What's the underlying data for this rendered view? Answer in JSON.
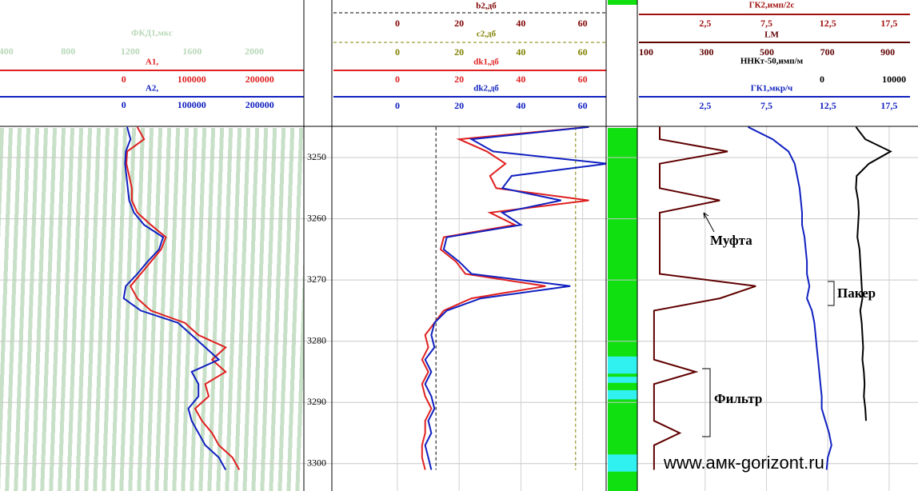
{
  "well": {
    "depth_range": [
      3244.9,
      3302.9
    ],
    "depth_ticks": [
      3250,
      3260,
      3270,
      3280,
      3290,
      3300
    ],
    "depths": [
      3245,
      3247,
      3249,
      3251,
      3253,
      3255,
      3257,
      3259,
      3261,
      3263,
      3265,
      3267,
      3269,
      3271,
      3273,
      3275,
      3277,
      3279,
      3281,
      3283,
      3285,
      3287,
      3289,
      3291,
      3293,
      3295,
      3297,
      3299,
      3301
    ],
    "tracks": [
      {
        "headers": [
          {
            "title": "ФКД1,мкс",
            "color": "#b8d8b8",
            "range": [
              360,
              2320
            ],
            "ticks": [
              400,
              800,
              1200,
              1600,
              2000
            ],
            "line": "none"
          },
          {
            "title": "A1,",
            "color": "#e02020",
            "range": [
              -182000,
              265000
            ],
            "ticks": [
              0,
              100000,
              200000
            ],
            "line": "solid"
          },
          {
            "title": "A2,",
            "color": "#1020c0",
            "range": [
              -182000,
              265000
            ],
            "ticks": [
              0,
              100000,
              200000
            ],
            "line": "solid"
          }
        ],
        "curves": [
          {
            "header": 1,
            "values": [
              20000,
              30000,
              5000,
              4000,
              8000,
              12000,
              12000,
              20000,
              40000,
              62000,
              55000,
              40000,
              25000,
              10000,
              20000,
              40000,
              90000,
              110000,
              150000,
              130000,
              150000,
              120000,
              125000,
              105000,
              115000,
              130000,
              140000,
              160000,
              170000
            ]
          },
          {
            "header": 2,
            "values": [
              5000,
              10000,
              3000,
              2000,
              4000,
              6000,
              8000,
              15000,
              30000,
              58000,
              52000,
              35000,
              20000,
              3000,
              0,
              25000,
              80000,
              100000,
              120000,
              140000,
              100000,
              110000,
              110000,
              95000,
              100000,
              110000,
              120000,
              140000,
              150000
            ]
          }
        ]
      },
      {
        "headers": [
          {
            "title": "b2,дб",
            "color": "#800000",
            "range": [
              -20.7,
              67.6
            ],
            "ticks": [
              0,
              20,
              40,
              60
            ],
            "line": "dashed-black"
          },
          {
            "title": "c2,дб",
            "color": "#808000",
            "range": [
              -20.7,
              67.6
            ],
            "ticks": [
              0,
              20,
              40,
              60
            ],
            "line": "dashed"
          },
          {
            "title": "dk1,дб",
            "color": "#e02020",
            "range": [
              -20.7,
              67.6
            ],
            "ticks": [
              0,
              20,
              40,
              60
            ],
            "line": "solid"
          },
          {
            "title": "dk2,дб",
            "color": "#1020c0",
            "range": [
              -20.7,
              67.6
            ],
            "ticks": [
              0,
              20,
              40,
              60
            ],
            "line": "solid"
          }
        ],
        "curves": [
          {
            "header": 0,
            "values": [
              12.5,
              12.5,
              12.5,
              12.5,
              12.5,
              12.5,
              12.5,
              12.5,
              12.5,
              12.5,
              12.5,
              12.5,
              12.5,
              12.5,
              12.5,
              12.5,
              12.5,
              12.5,
              12.5,
              12.5,
              12.5,
              12.5,
              12.5,
              12.5,
              12.5,
              12.5,
              12.5,
              12.5,
              12.5
            ]
          },
          {
            "header": 1,
            "values": [
              57.7,
              57.7,
              57.7,
              57.7,
              57.7,
              57.7,
              57.7,
              57.7,
              57.7,
              57.7,
              57.7,
              57.7,
              57.7,
              57.7,
              57.7,
              57.7,
              57.7,
              57.7,
              57.7,
              57.7,
              57.7,
              57.7,
              57.7,
              57.7,
              57.7,
              57.7,
              57.7,
              57.7,
              57.7
            ]
          },
          {
            "header": 2,
            "values": [
              62,
              20,
              29,
              35,
              30,
              32,
              62,
              30,
              38,
              15,
              14,
              19,
              22,
              48,
              24,
              15,
              12,
              9,
              10,
              8,
              10,
              8,
              9,
              11,
              9,
              9,
              8,
              8,
              9
            ]
          },
          {
            "header": 3,
            "values": [
              62,
              24,
              31,
              68,
              37,
              34,
              53,
              34,
              40,
              16,
              15,
              20,
              24,
              56,
              27,
              16,
              12,
              11,
              12,
              9,
              11,
              9,
              11,
              12,
              10,
              11,
              9,
              10,
              11
            ]
          }
        ]
      },
      {
        "headers": [
          {
            "title": "ГК2,имп/2с",
            "color": "#a01010",
            "range": [
              -2.9,
              19.2
            ],
            "ticks": [
              {
                "value": 2.5,
                "label": "2,5"
              },
              {
                "value": 7.5,
                "label": "7,5"
              },
              {
                "value": 12.5,
                "label": "12,5"
              },
              {
                "value": 17.5,
                "label": "17,5"
              }
            ],
            "line": "solid"
          },
          {
            "title": "LM",
            "color": "#600000",
            "range": [
              76,
              974
            ],
            "ticks": [
              100,
              300,
              500,
              700,
              900
            ],
            "line": "solid"
          },
          {
            "title": "ННКт-50,имп/м",
            "color": "#000000",
            "range": [
              -25400,
              12200
            ],
            "ticks": [
              0,
              10000
            ],
            "line": "none"
          },
          {
            "title": "ГК1,мкр/ч",
            "color": "#1020c0",
            "range": [
              -2.9,
              19.2
            ],
            "ticks": [
              {
                "value": 2.5,
                "label": "2,5"
              },
              {
                "value": 7.5,
                "label": "7,5"
              },
              {
                "value": 12.5,
                "label": "12,5"
              },
              {
                "value": 17.5,
                "label": "17,5"
              }
            ],
            "line": "solid"
          }
        ],
        "curves": [
          {
            "header": 1,
            "values": [
              145,
              145,
              370,
              145,
              145,
              145,
              344,
              145,
              145,
              145,
              145,
              145,
              145,
              463,
              344,
              126,
              126,
              126,
              126,
              126,
              264,
              126,
              126,
              126,
              126,
              211,
              126,
              126,
              126
            ]
          },
          {
            "header": 3,
            "values": [
              6.0,
              8.0,
              9.3,
              9.8,
              10.0,
              10.2,
              10.3,
              10.4,
              10.4,
              10.6,
              10.7,
              10.8,
              10.8,
              11.0,
              10.8,
              11.2,
              11.4,
              11.5,
              11.6,
              11.7,
              11.8,
              11.9,
              12.0,
              12.0,
              12.3,
              12.6,
              12.8,
              12.5,
              12.4
            ]
          },
          {
            "header": 2,
            "values": [
              4700,
              6000,
              9500,
              6500,
              4800,
              4700,
              5000,
              5100,
              5000,
              4900,
              5200,
              5300,
              5400,
              5500,
              5600,
              5300,
              5500,
              5600,
              5700,
              5600,
              5800,
              5900,
              5800,
              6000,
              6100,
              null,
              null,
              null,
              null
            ]
          }
        ]
      }
    ],
    "lithology_bands": [
      {
        "from": 3282.5,
        "to": 3285.3
      },
      {
        "from": 3285.8,
        "to": 3286.8
      },
      {
        "from": 3288.0,
        "to": 3289.5
      },
      {
        "from": 3298.5,
        "to": 3301.3
      }
    ],
    "annotations": {
      "coupling": "Муфта",
      "packer": "Пакер",
      "filter": "Фильтр"
    },
    "watermark": "www.амк-gorizont.ru"
  }
}
